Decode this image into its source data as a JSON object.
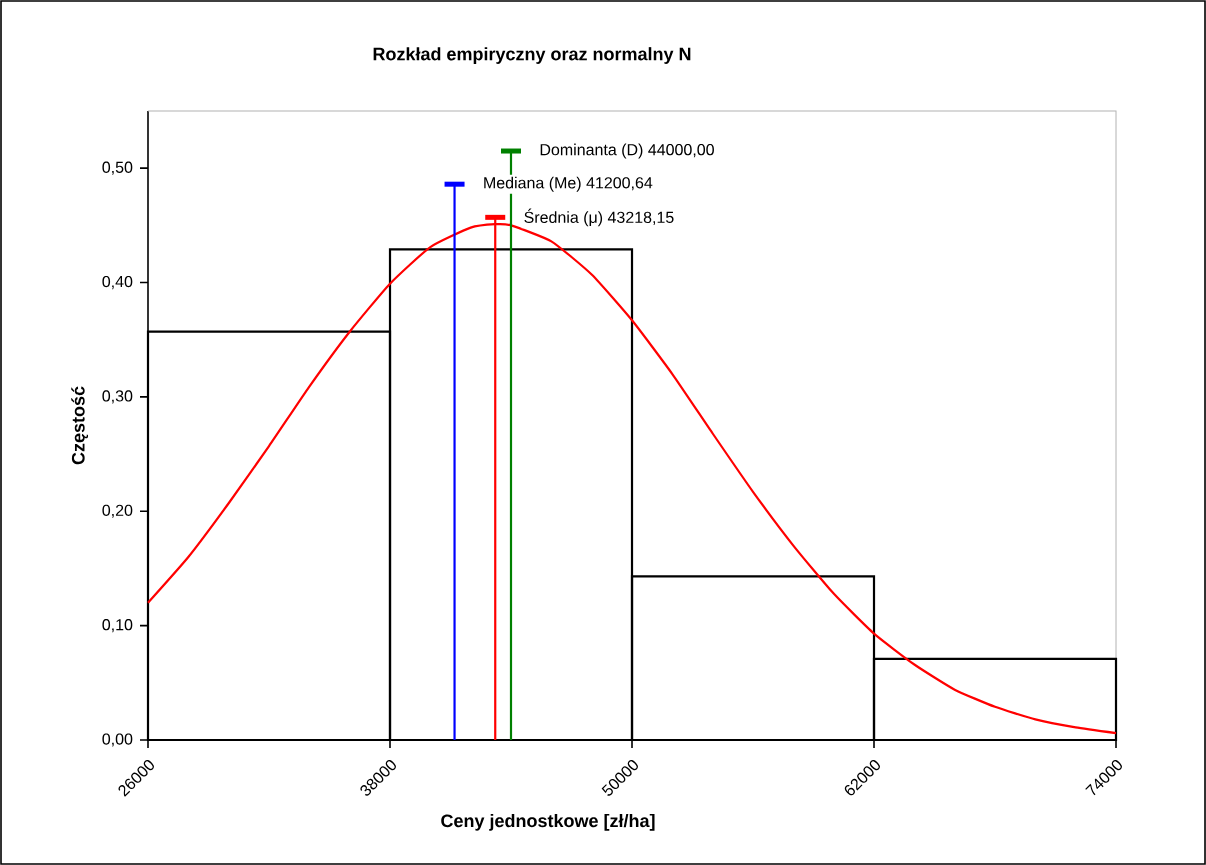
{
  "chart_data": {
    "type": "histogram",
    "title": "Rozkład empiryczny oraz normalny N",
    "xlabel": "Ceny jednostkowe  [zł/ha]",
    "ylabel": "Częstość",
    "series": [
      {
        "bins": [
          26000,
          38000,
          50000,
          62000,
          74000
        ],
        "values": [
          0.357,
          0.429,
          0.143,
          0.071
        ],
        "color": "#000000"
      },
      {
        "type": "line",
        "color": "#ff0000",
        "x": [
          26000,
          28000,
          30000,
          32000,
          34000,
          36000,
          38000,
          40000,
          42000,
          43218,
          44000,
          46000,
          48000,
          50000,
          52000,
          54000,
          56000,
          58000,
          60000,
          62000,
          64000,
          66000,
          68000,
          70000,
          72000,
          74000
        ],
        "values": [
          0.12,
          0.16,
          0.207,
          0.257,
          0.309,
          0.357,
          0.399,
          0.431,
          0.448,
          0.451,
          0.45,
          0.436,
          0.407,
          0.367,
          0.32,
          0.268,
          0.217,
          0.17,
          0.128,
          0.093,
          0.066,
          0.044,
          0.029,
          0.018,
          0.011,
          0.006
        ]
      }
    ],
    "ref_lines": [
      {
        "axis": "x",
        "value": 44000.0,
        "label": "Dominanta (D) 44000,00",
        "color": "#008000"
      },
      {
        "axis": "x",
        "value": 41200.64,
        "label": "Mediana (Me) 41200,64",
        "color": "#0000ff"
      },
      {
        "axis": "x",
        "value": 43218.15,
        "label": "Średnia (μ) 43218,15",
        "color": "#ff0000"
      }
    ],
    "xlim": [
      26000,
      74000
    ],
    "ylim": [
      0,
      0.55
    ],
    "xticks": [
      26000,
      38000,
      50000,
      62000,
      74000
    ],
    "yticks": [
      {
        "value": 0,
        "label": "0,00"
      },
      {
        "value": 0.1,
        "label": "0,10"
      },
      {
        "value": 0.2,
        "label": "0,20"
      },
      {
        "value": 0.3,
        "label": "0,30"
      },
      {
        "value": 0.4,
        "label": "0,40"
      },
      {
        "value": 0.5,
        "label": "0,50"
      }
    ],
    "grid": false,
    "marker": "none",
    "line_style": "solid"
  }
}
